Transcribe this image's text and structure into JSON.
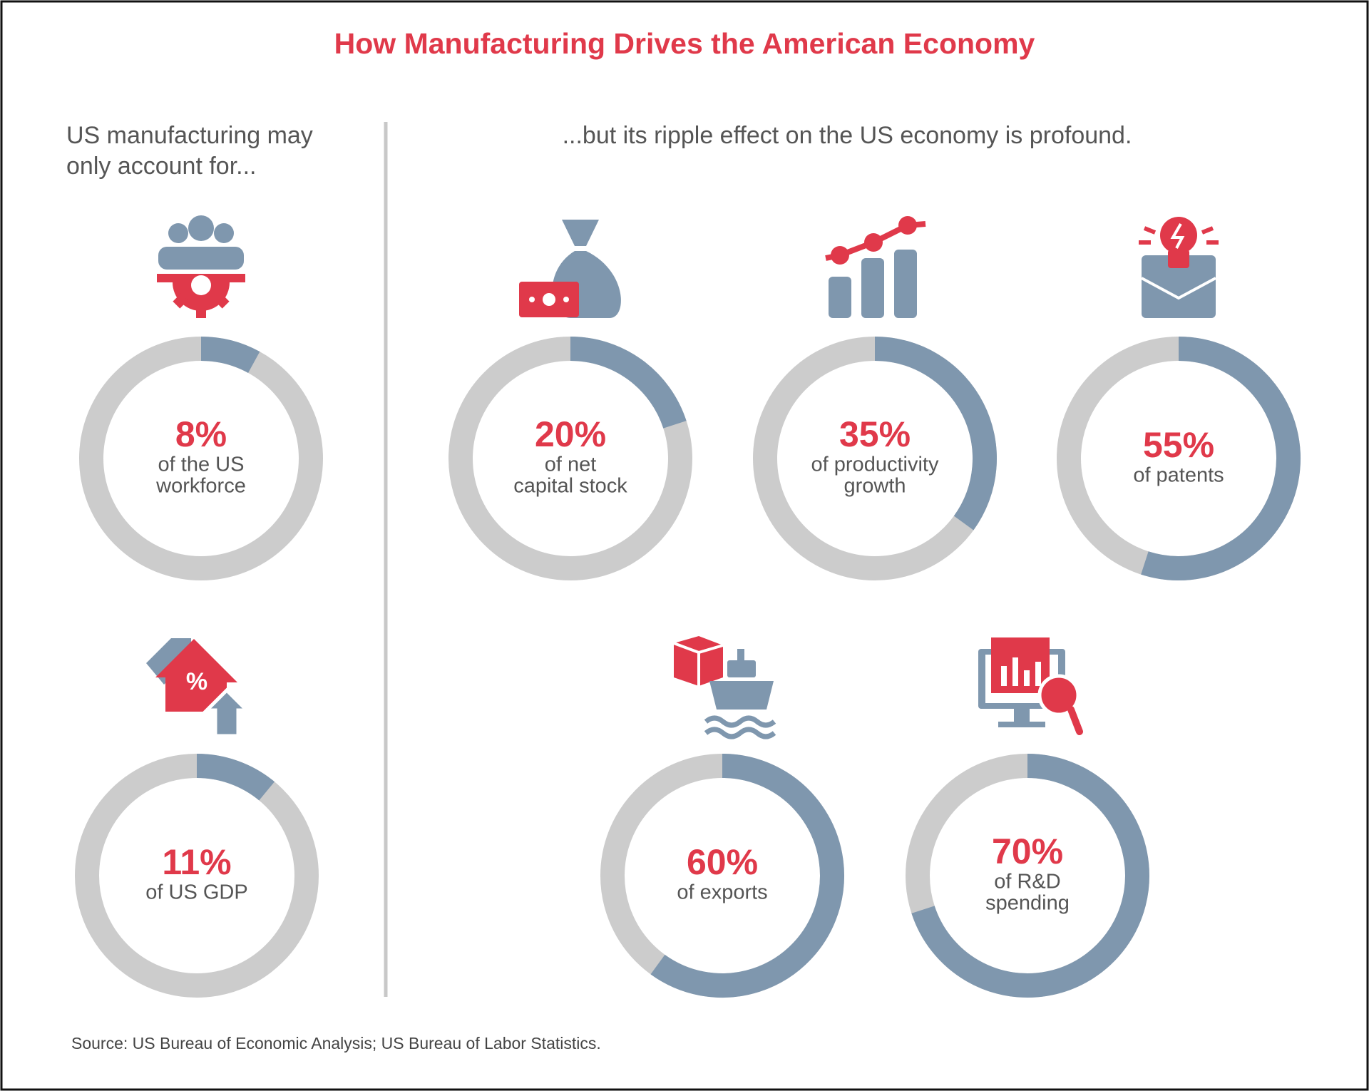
{
  "title": "How Manufacturing Drives the American Economy",
  "left_heading": [
    "US manufacturing may",
    "only account for..."
  ],
  "right_heading": "...but its ripple effect on the US economy is profound.",
  "source": "Source: US Bureau of Economic Analysis; US Bureau of Labor Statistics.",
  "chart_data": [
    {
      "type": "donut",
      "values": [
        8
      ],
      "value_labels": [
        "8%"
      ],
      "caption": [
        "of the US",
        "workforce"
      ],
      "color": "#7f97ae",
      "track_color": "#cccccc",
      "label_color": "#e0394a"
    },
    {
      "type": "donut",
      "values": [
        20
      ],
      "value_labels": [
        "20%"
      ],
      "caption": [
        "of net",
        "capital stock"
      ],
      "color": "#7f97ae",
      "track_color": "#cccccc",
      "label_color": "#e0394a"
    },
    {
      "type": "donut",
      "values": [
        35
      ],
      "value_labels": [
        "35%"
      ],
      "caption": [
        "of productivity",
        "growth"
      ],
      "color": "#7f97ae",
      "track_color": "#cccccc",
      "label_color": "#e0394a"
    },
    {
      "type": "donut",
      "values": [
        55
      ],
      "value_labels": [
        "55%"
      ],
      "caption": [
        "of patents"
      ],
      "color": "#7f97ae",
      "track_color": "#cccccc",
      "label_color": "#e0394a"
    },
    {
      "type": "donut",
      "values": [
        11
      ],
      "value_labels": [
        "11%"
      ],
      "caption": [
        "of US GDP"
      ],
      "color": "#7f97ae",
      "track_color": "#cccccc",
      "label_color": "#e0394a"
    },
    {
      "type": "donut",
      "values": [
        60
      ],
      "value_labels": [
        "60%"
      ],
      "caption": [
        "of exports"
      ],
      "color": "#7f97ae",
      "track_color": "#cccccc",
      "label_color": "#e0394a"
    },
    {
      "type": "donut",
      "values": [
        70
      ],
      "value_labels": [
        "70%"
      ],
      "caption": [
        "of R&D",
        "spending"
      ],
      "color": "#7f97ae",
      "track_color": "#cccccc",
      "label_color": "#e0394a"
    }
  ]
}
